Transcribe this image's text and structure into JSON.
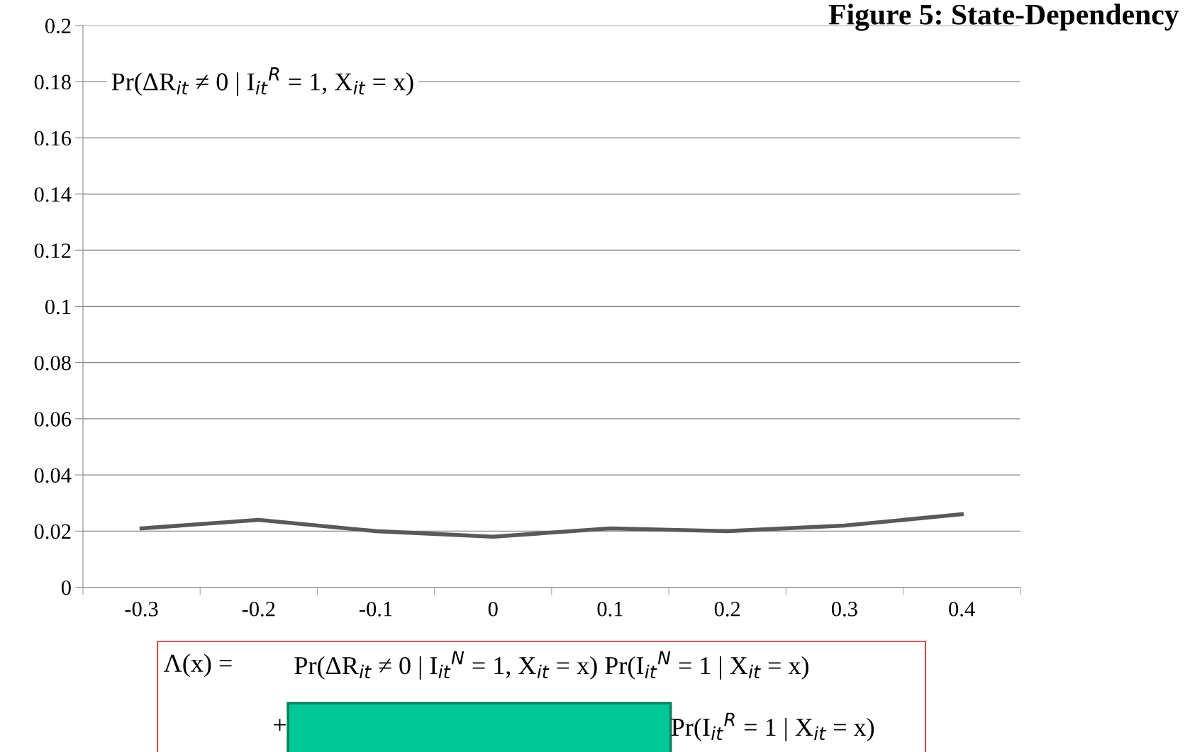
{
  "chart_data": {
    "type": "line",
    "title": "Figure 5: State-Dependency",
    "categories": [
      "-0.3",
      "-0.2",
      "-0.1",
      "0",
      "0.1",
      "0.2",
      "0.3",
      "0.4"
    ],
    "series": [
      {
        "color": "#595959",
        "values": [
          0.021,
          0.024,
          0.02,
          0.018,
          0.021,
          0.02,
          0.022,
          0.026
        ]
      }
    ],
    "ylim": [
      0,
      0.2
    ],
    "yticks": [
      0,
      0.02,
      0.04,
      0.06,
      0.08,
      0.1,
      0.12,
      0.14,
      0.16,
      0.18,
      0.2
    ],
    "grid": "y",
    "marker": "none",
    "line_style": "solid",
    "annotations": [
      "Pr(ΔR$_{it}$ ≠ 0 | I$_{it}$$^{R}$ = 1, X$_{it}$ = x)",
      "Λ(x) =",
      "Pr(ΔR$_{it}$ ≠ 0 | I$_{it}$$^{N}$ = 1, X$_{it}$ = x) Pr(I$_{it}$$^{N}$ = 1 | X$_{it}$ = x)",
      "+",
      "Pr(I$_{it}$$^{R}$ = 1 | X$_{it}$ = x)"
    ]
  }
}
